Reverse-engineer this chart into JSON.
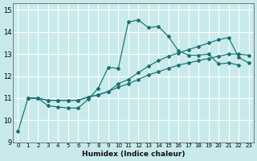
{
  "xlabel": "Humidex (Indice chaleur)",
  "background_color": "#c8eaea",
  "grid_color": "#ffffff",
  "line_color": "#1a7070",
  "xlim": [
    -0.5,
    23.5
  ],
  "ylim": [
    9.0,
    15.3
  ],
  "xticks": [
    0,
    1,
    2,
    3,
    4,
    5,
    6,
    7,
    8,
    9,
    10,
    11,
    12,
    13,
    14,
    15,
    16,
    17,
    18,
    19,
    20,
    21,
    22,
    23
  ],
  "yticks": [
    9,
    10,
    11,
    12,
    13,
    14,
    15
  ],
  "series1_x": [
    0,
    1,
    2,
    3,
    4,
    5,
    6,
    7,
    8,
    9,
    10,
    11,
    12,
    13,
    14,
    15,
    16,
    17,
    18,
    19,
    20,
    21,
    22
  ],
  "series1_y": [
    9.5,
    11.0,
    11.0,
    10.65,
    10.6,
    10.55,
    10.55,
    10.95,
    11.45,
    12.4,
    12.35,
    14.45,
    14.55,
    14.2,
    14.25,
    13.8,
    13.15,
    12.95,
    12.95,
    13.0,
    12.55,
    12.6,
    12.5
  ],
  "series2_x": [
    1,
    2,
    3,
    4,
    5,
    6,
    7,
    8,
    9,
    10,
    11,
    12,
    13,
    14,
    15,
    16,
    17,
    18,
    19,
    20,
    21,
    22,
    23
  ],
  "series2_y": [
    11.0,
    11.0,
    10.9,
    10.9,
    10.9,
    10.9,
    11.05,
    11.15,
    11.3,
    11.5,
    11.65,
    11.85,
    12.05,
    12.2,
    12.35,
    12.5,
    12.6,
    12.7,
    12.8,
    12.9,
    13.0,
    13.0,
    12.95
  ],
  "series3_x": [
    1,
    2,
    3,
    4,
    5,
    6,
    7,
    8,
    9,
    10,
    11,
    12,
    13,
    14,
    15,
    16,
    17,
    18,
    19,
    20,
    21,
    22,
    23
  ],
  "series3_y": [
    11.0,
    11.0,
    10.9,
    10.9,
    10.9,
    10.9,
    11.05,
    11.15,
    11.3,
    11.65,
    11.85,
    12.15,
    12.45,
    12.7,
    12.9,
    13.05,
    13.2,
    13.35,
    13.5,
    13.65,
    13.75,
    12.85,
    12.6
  ]
}
